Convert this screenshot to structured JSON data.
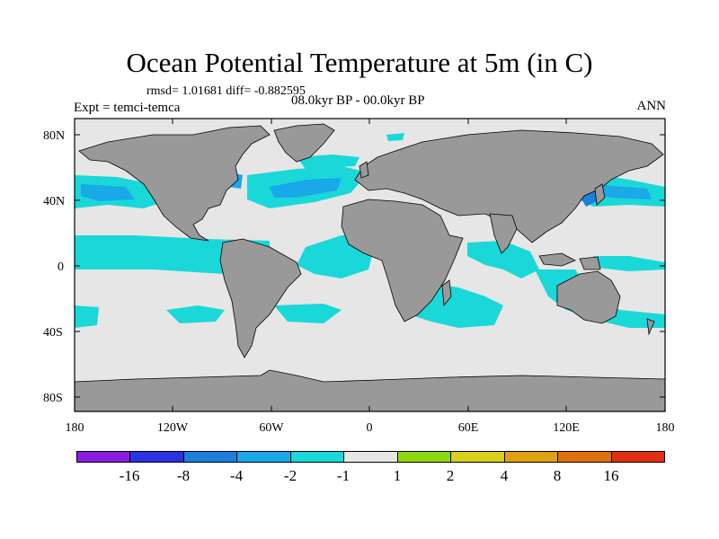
{
  "title": "Ocean Potential Temperature at 5m (in C)",
  "stats": "rmsd= 1.01681 diff= -0.882595",
  "experiment": "Expt = temci-temca",
  "period": "08.0kyr BP - 00.0kyr BP",
  "season": "ANN",
  "axes": {
    "y_ticks": [
      "80N",
      "40N",
      "0",
      "40S",
      "80S"
    ],
    "x_ticks": [
      "180",
      "120W",
      "60W",
      "0",
      "60E",
      "120E",
      "180"
    ]
  },
  "colors": {
    "land": "#999999",
    "ocean_neutral": "#e6e6e6",
    "anom_neg1": "#1ad8d8",
    "anom_neg2": "#19a8e8",
    "anom_neg4": "#1c7fdc",
    "anom_pos1": "#8fd810"
  },
  "colorbar": {
    "bins": [
      "#8a1ce0",
      "#2f32e0",
      "#1c7fdc",
      "#19a8e8",
      "#1ad8d8",
      "#e6e6e6",
      "#8fd810",
      "#d8d01c",
      "#e0a014",
      "#e07010",
      "#e03010"
    ],
    "labels": [
      "-16",
      "-8",
      "-4",
      "-2",
      "-1",
      "1",
      "2",
      "4",
      "8",
      "16"
    ]
  }
}
